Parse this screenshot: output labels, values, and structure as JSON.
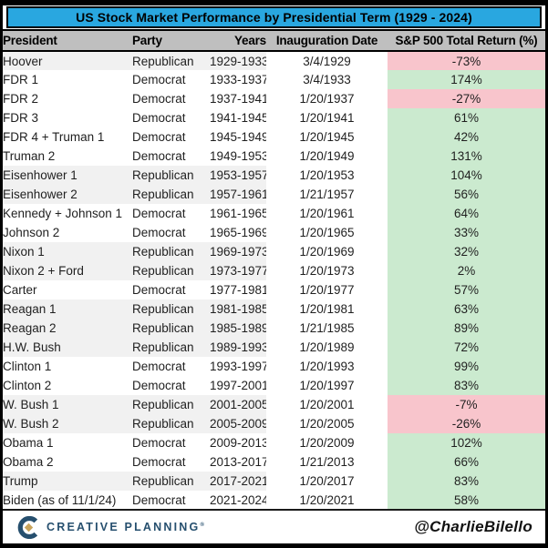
{
  "chart_data": {
    "type": "table",
    "title": "US Stock Market Performance by Presidential Term (1929 - 2024)",
    "columns": [
      "President",
      "Party",
      "Years",
      "Inauguration Date",
      "S&P 500 Total Return (%)"
    ],
    "rows": [
      {
        "president": "Hoover",
        "party": "Republican",
        "years": "1929-1933",
        "inauguration_date": "3/4/1929",
        "return": "-73%"
      },
      {
        "president": "FDR 1",
        "party": "Democrat",
        "years": "1933-1937",
        "inauguration_date": "3/4/1933",
        "return": "174%"
      },
      {
        "president": "FDR 2",
        "party": "Democrat",
        "years": "1937-1941",
        "inauguration_date": "1/20/1937",
        "return": "-27%"
      },
      {
        "president": "FDR 3",
        "party": "Democrat",
        "years": "1941-1945",
        "inauguration_date": "1/20/1941",
        "return": "61%"
      },
      {
        "president": "FDR 4 + Truman 1",
        "party": "Democrat",
        "years": "1945-1949",
        "inauguration_date": "1/20/1945",
        "return": "42%"
      },
      {
        "president": "Truman 2",
        "party": "Democrat",
        "years": "1949-1953",
        "inauguration_date": "1/20/1949",
        "return": "131%"
      },
      {
        "president": "Eisenhower 1",
        "party": "Republican",
        "years": "1953-1957",
        "inauguration_date": "1/20/1953",
        "return": "104%"
      },
      {
        "president": "Eisenhower 2",
        "party": "Republican",
        "years": "1957-1961",
        "inauguration_date": "1/21/1957",
        "return": "56%"
      },
      {
        "president": "Kennedy + Johnson 1",
        "party": "Democrat",
        "years": "1961-1965",
        "inauguration_date": "1/20/1961",
        "return": "64%"
      },
      {
        "president": "Johnson 2",
        "party": "Democrat",
        "years": "1965-1969",
        "inauguration_date": "1/20/1965",
        "return": "33%"
      },
      {
        "president": "Nixon 1",
        "party": "Republican",
        "years": "1969-1973",
        "inauguration_date": "1/20/1969",
        "return": "32%"
      },
      {
        "president": "Nixon 2 + Ford",
        "party": "Republican",
        "years": "1973-1977",
        "inauguration_date": "1/20/1973",
        "return": "2%"
      },
      {
        "president": "Carter",
        "party": "Democrat",
        "years": "1977-1981",
        "inauguration_date": "1/20/1977",
        "return": "57%"
      },
      {
        "president": "Reagan 1",
        "party": "Republican",
        "years": "1981-1985",
        "inauguration_date": "1/20/1981",
        "return": "63%"
      },
      {
        "president": "Reagan 2",
        "party": "Republican",
        "years": "1985-1989",
        "inauguration_date": "1/21/1985",
        "return": "89%"
      },
      {
        "president": "H.W. Bush",
        "party": "Republican",
        "years": "1989-1993",
        "inauguration_date": "1/20/1989",
        "return": "72%"
      },
      {
        "president": "Clinton 1",
        "party": "Democrat",
        "years": "1993-1997",
        "inauguration_date": "1/20/1993",
        "return": "99%"
      },
      {
        "president": "Clinton 2",
        "party": "Democrat",
        "years": "1997-2001",
        "inauguration_date": "1/20/1997",
        "return": "83%"
      },
      {
        "president": "W. Bush 1",
        "party": "Republican",
        "years": "2001-2005",
        "inauguration_date": "1/20/2001",
        "return": "-7%"
      },
      {
        "president": "W. Bush 2",
        "party": "Republican",
        "years": "2005-2009",
        "inauguration_date": "1/20/2005",
        "return": "-26%"
      },
      {
        "president": "Obama 1",
        "party": "Democrat",
        "years": "2009-2013",
        "inauguration_date": "1/20/2009",
        "return": "102%"
      },
      {
        "president": "Obama 2",
        "party": "Democrat",
        "years": "2013-2017",
        "inauguration_date": "1/21/2013",
        "return": "66%"
      },
      {
        "president": "Trump",
        "party": "Republican",
        "years": "2017-2021",
        "inauguration_date": "1/20/2017",
        "return": "83%"
      },
      {
        "president": "Biden (as of 11/1/24)",
        "party": "Democrat",
        "years": "2021-2024",
        "inauguration_date": "1/20/2021",
        "return": "58%"
      }
    ],
    "layout": {
      "grid": "off",
      "row_shading": "Republican rows shaded light gray in President/Party/Years columns",
      "return_cell_coloring": "green background for positive, pink background for negative"
    }
  },
  "footer": {
    "brand": "CREATIVE PLANNING",
    "brand_mark": "®",
    "handle": "@CharlieBilello"
  },
  "icons": {
    "brand_logo": "creative-planning-c-logo"
  },
  "colors": {
    "title_bar_bg": "#29A7E0",
    "header_bg": "#BFBFBF",
    "republican_row_bg": "#F1F1F1",
    "democrat_row_bg": "#FFFFFF",
    "positive_bg": "#CBEACF",
    "positive_text": "#44924F",
    "negative_bg": "#F8C5CC",
    "negative_text": "#BE3A4E",
    "brand_navy": "#264F6E",
    "brand_gold": "#C9A45C",
    "border": "#000000"
  }
}
